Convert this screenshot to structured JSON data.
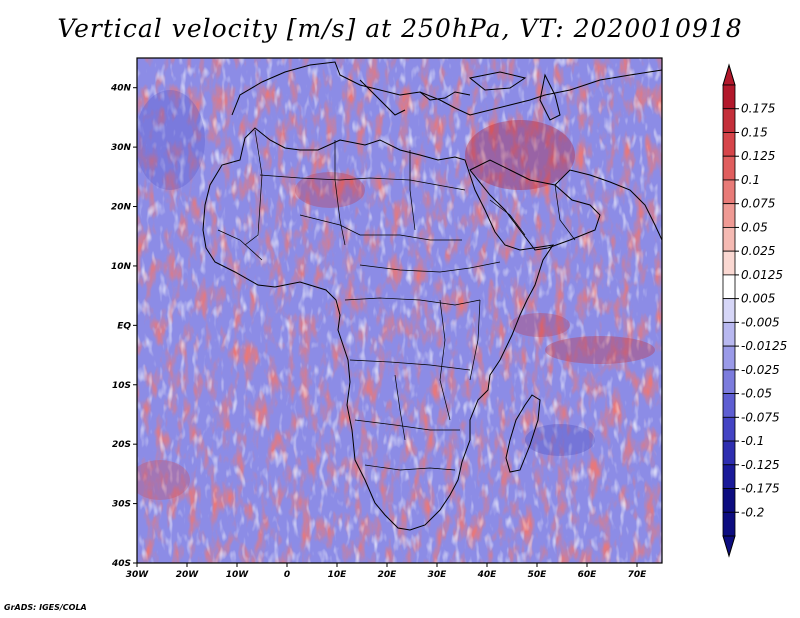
{
  "title": "Vertical velocity [m/s] at 250hPa, VT: 2020010918",
  "credit": "GrADS: IGES/COLA",
  "map": {
    "lon_range": [
      -30,
      75
    ],
    "lat_range": [
      -40,
      45
    ],
    "lon_ticks": [
      "30W",
      "20W",
      "10W",
      "0",
      "10E",
      "20E",
      "30E",
      "40E",
      "50E",
      "60E",
      "70E"
    ],
    "lat_ticks": [
      "40N",
      "30N",
      "20N",
      "10N",
      "EQ",
      "10S",
      "20S",
      "30S",
      "40S"
    ]
  },
  "colorbar": {
    "levels": [
      "0.175",
      "0.15",
      "0.125",
      "0.1",
      "0.075",
      "0.05",
      "0.025",
      "0.0125",
      "0.005",
      "-0.005",
      "-0.0125",
      "-0.025",
      "-0.05",
      "-0.075",
      "-0.1",
      "-0.125",
      "-0.175",
      "-0.2"
    ],
    "colors": [
      "#b2182b",
      "#c42f3a",
      "#d6454a",
      "#e05e5e",
      "#e87b78",
      "#ef9a94",
      "#f5bab3",
      "#fad8d2",
      "#ffffff",
      "#d6d6f7",
      "#b8b8f0",
      "#9a9ae8",
      "#7c7cdd",
      "#5e5ed2",
      "#4444c4",
      "#2e2eb0",
      "#1a1a99",
      "#0d0d80"
    ]
  }
}
